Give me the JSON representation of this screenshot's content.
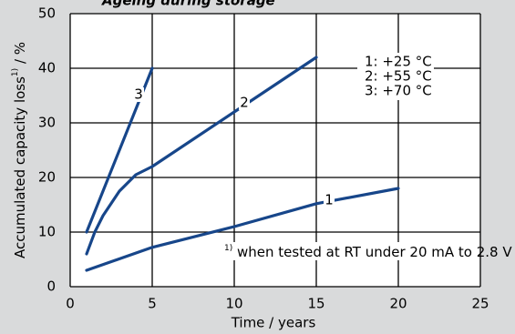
{
  "chart_data": {
    "type": "line",
    "title": "Ageing during storage",
    "x_label": "Time / years",
    "y_label": {
      "text": "Accumulated capacity loss",
      "sup": "1)",
      "unit": " / %"
    },
    "xlim": [
      0,
      25
    ],
    "xticks": [
      0,
      5,
      10,
      15,
      20,
      25
    ],
    "ylim": [
      0,
      50
    ],
    "yticks": [
      0,
      10,
      20,
      30,
      40,
      50
    ],
    "grid": true,
    "color": "#17468a",
    "series": [
      {
        "name": "1",
        "x": [
          1,
          5,
          10,
          15,
          20
        ],
        "values": [
          3,
          7.2,
          11,
          15.2,
          18
        ]
      },
      {
        "name": "2",
        "x": [
          1,
          1.5,
          2,
          3,
          4,
          5,
          10,
          15
        ],
        "values": [
          6,
          10,
          13,
          17.5,
          20.5,
          22,
          32,
          42
        ]
      },
      {
        "name": "3",
        "x": [
          1,
          5
        ],
        "values": [
          10,
          40
        ]
      }
    ],
    "legend_labels": [
      "1: +25 °C",
      "2: +55 °C",
      "3: +70 °C"
    ],
    "footnote": {
      "sup": "1)",
      "text": " when tested at RT under 20 mA to 2.8 V"
    }
  }
}
